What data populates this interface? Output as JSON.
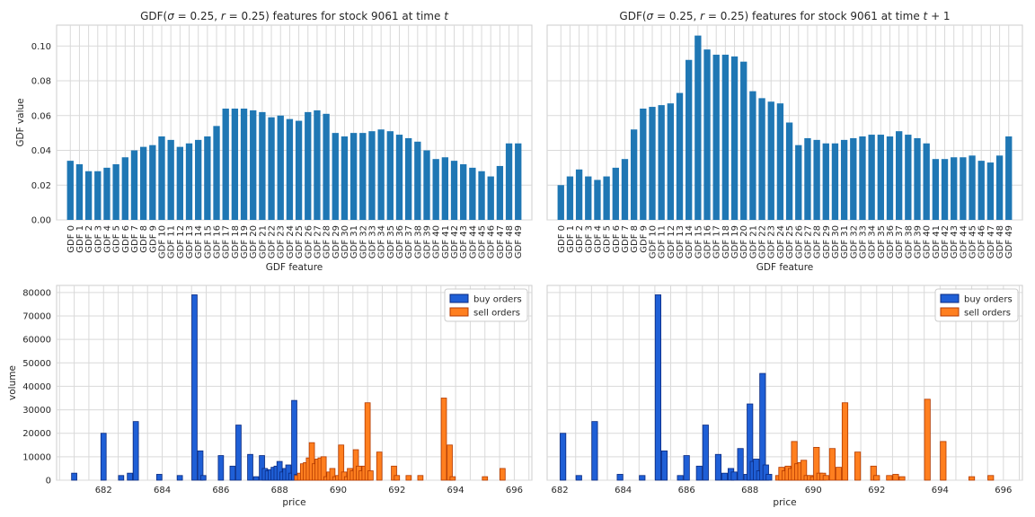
{
  "colors": {
    "gdf_bar": "#1f77b4",
    "buy_fill": "#1f5fd6",
    "buy_edge": "#0a2a80",
    "sell_fill": "#ff7f1f",
    "sell_edge": "#b33a00"
  },
  "chart_data": [
    {
      "id": "gdf_t",
      "type": "bar",
      "title_parts": [
        "GDF(",
        "σ",
        " = 0.25, ",
        "r",
        " = 0.25) features for stock 9061 at time ",
        "t",
        ""
      ],
      "xlabel": "GDF feature",
      "ylabel": "GDF value",
      "ylim": [
        0,
        0.112
      ],
      "yticks": [
        0.0,
        0.02,
        0.04,
        0.06,
        0.08,
        0.1
      ],
      "ytick_labels": [
        "0.00",
        "0.02",
        "0.04",
        "0.06",
        "0.08",
        "0.10"
      ],
      "categories": [
        "GDF 0",
        "GDF 1",
        "GDF 2",
        "GDF 3",
        "GDF 4",
        "GDF 5",
        "GDF 6",
        "GDF 7",
        "GDF 8",
        "GDF 9",
        "GDF 10",
        "GDF 11",
        "GDF 12",
        "GDF 13",
        "GDF 14",
        "GDF 15",
        "GDF 16",
        "GDF 17",
        "GDF 18",
        "GDF 19",
        "GDF 20",
        "GDF 21",
        "GDF 22",
        "GDF 23",
        "GDF 24",
        "GDF 25",
        "GDF 26",
        "GDF 27",
        "GDF 28",
        "GDF 29",
        "GDF 30",
        "GDF 31",
        "GDF 32",
        "GDF 33",
        "GDF 34",
        "GDF 35",
        "GDF 36",
        "GDF 37",
        "GDF 38",
        "GDF 39",
        "GDF 40",
        "GDF 41",
        "GDF 42",
        "GDF 43",
        "GDF 44",
        "GDF 45",
        "GDF 46",
        "GDF 47",
        "GDF 48",
        "GDF 49"
      ],
      "values": [
        0.034,
        0.032,
        0.028,
        0.028,
        0.03,
        0.032,
        0.036,
        0.04,
        0.042,
        0.043,
        0.048,
        0.046,
        0.042,
        0.044,
        0.046,
        0.048,
        0.054,
        0.064,
        0.064,
        0.064,
        0.063,
        0.062,
        0.059,
        0.06,
        0.058,
        0.057,
        0.062,
        0.063,
        0.061,
        0.05,
        0.048,
        0.05,
        0.05,
        0.051,
        0.052,
        0.051,
        0.049,
        0.047,
        0.045,
        0.04,
        0.035,
        0.036,
        0.034,
        0.032,
        0.03,
        0.028,
        0.025,
        0.031,
        0.044,
        0.044
      ]
    },
    {
      "id": "gdf_t1",
      "type": "bar",
      "title_parts": [
        "GDF(",
        "σ",
        " = 0.25, ",
        "r",
        " = 0.25) features for stock 9061 at time ",
        "t",
        " + 1"
      ],
      "xlabel": "GDF feature",
      "ylabel": "",
      "ylim": [
        0,
        0.112
      ],
      "yticks": [
        0.0,
        0.02,
        0.04,
        0.06,
        0.08,
        0.1
      ],
      "ytick_labels": [],
      "categories": [
        "GDF 0",
        "GDF 1",
        "GDF 2",
        "GDF 3",
        "GDF 4",
        "GDF 5",
        "GDF 6",
        "GDF 7",
        "GDF 8",
        "GDF 9",
        "GDF 10",
        "GDF 11",
        "GDF 12",
        "GDF 13",
        "GDF 14",
        "GDF 15",
        "GDF 16",
        "GDF 17",
        "GDF 18",
        "GDF 19",
        "GDF 20",
        "GDF 21",
        "GDF 22",
        "GDF 23",
        "GDF 24",
        "GDF 25",
        "GDF 26",
        "GDF 27",
        "GDF 28",
        "GDF 29",
        "GDF 30",
        "GDF 31",
        "GDF 32",
        "GDF 33",
        "GDF 34",
        "GDF 35",
        "GDF 36",
        "GDF 37",
        "GDF 38",
        "GDF 39",
        "GDF 40",
        "GDF 41",
        "GDF 42",
        "GDF 43",
        "GDF 44",
        "GDF 45",
        "GDF 46",
        "GDF 47",
        "GDF 48",
        "GDF 49"
      ],
      "values": [
        0.02,
        0.025,
        0.029,
        0.025,
        0.023,
        0.025,
        0.03,
        0.035,
        0.052,
        0.064,
        0.065,
        0.066,
        0.067,
        0.073,
        0.092,
        0.106,
        0.098,
        0.095,
        0.095,
        0.094,
        0.091,
        0.074,
        0.07,
        0.068,
        0.067,
        0.056,
        0.043,
        0.047,
        0.046,
        0.044,
        0.044,
        0.046,
        0.047,
        0.048,
        0.049,
        0.049,
        0.048,
        0.051,
        0.049,
        0.047,
        0.044,
        0.035,
        0.035,
        0.036,
        0.036,
        0.037,
        0.034,
        0.033,
        0.037,
        0.048
      ]
    },
    {
      "id": "orders_t",
      "type": "bar",
      "xlabel": "price",
      "ylabel": "volume",
      "xlim": [
        680.4,
        696.6
      ],
      "ylim": [
        0,
        83000
      ],
      "xticks": [
        682,
        684,
        686,
        688,
        690,
        692,
        694,
        696
      ],
      "yticks": [
        0,
        10000,
        20000,
        30000,
        40000,
        50000,
        60000,
        70000,
        80000
      ],
      "ytick_labels": [
        "0",
        "10000",
        "20000",
        "30000",
        "40000",
        "50000",
        "60000",
        "70000",
        "80000"
      ],
      "bar_width": 0.18,
      "legend": [
        "buy orders",
        "sell orders"
      ],
      "legend_loc": "upper right",
      "series": [
        {
          "name": "buy orders",
          "x": [
            681.0,
            682.0,
            682.6,
            682.9,
            683.1,
            683.9,
            684.6,
            685.1,
            685.3,
            685.4,
            686.0,
            686.4,
            686.6,
            687.0,
            687.2,
            687.4,
            687.5,
            687.6,
            687.7,
            687.8,
            687.9,
            688.0,
            688.1,
            688.2,
            688.3,
            688.4,
            688.5,
            688.6
          ],
          "values": [
            3000,
            20000,
            2000,
            3000,
            25000,
            2500,
            2000,
            79000,
            12500,
            2000,
            10500,
            6000,
            23500,
            11000,
            1500,
            10500,
            5000,
            4000,
            4500,
            5500,
            6000,
            8000,
            3500,
            5000,
            6500,
            3000,
            34000,
            2500
          ]
        },
        {
          "name": "sell orders",
          "x": [
            688.6,
            688.7,
            688.8,
            688.9,
            689.0,
            689.1,
            689.2,
            689.3,
            689.4,
            689.5,
            689.6,
            689.7,
            689.8,
            689.9,
            690.0,
            690.1,
            690.2,
            690.3,
            690.4,
            690.5,
            690.6,
            690.7,
            690.8,
            690.9,
            691.0,
            691.1,
            691.4,
            691.9,
            692.0,
            692.4,
            692.8,
            693.6,
            693.8,
            693.9,
            695.0,
            695.6
          ],
          "values": [
            2000,
            3000,
            7000,
            7500,
            9500,
            16000,
            7000,
            9000,
            9500,
            10000,
            1500,
            3500,
            5000,
            1500,
            2000,
            15000,
            3500,
            1500,
            5000,
            4000,
            13000,
            6000,
            4000,
            6000,
            33000,
            4000,
            12000,
            6000,
            2000,
            2000,
            2000,
            35000,
            15000,
            1500,
            1500,
            5000
          ]
        }
      ]
    },
    {
      "id": "orders_t1",
      "type": "bar",
      "xlabel": "price",
      "ylabel": "",
      "xlim": [
        681.6,
        696.6
      ],
      "ylim": [
        0,
        83000
      ],
      "xticks": [
        682,
        684,
        686,
        688,
        690,
        692,
        694,
        696
      ],
      "yticks": [
        0,
        10000,
        20000,
        30000,
        40000,
        50000,
        60000,
        70000,
        80000
      ],
      "ytick_labels": [],
      "bar_width": 0.18,
      "legend": [
        "buy orders",
        "sell orders"
      ],
      "legend_loc": "upper right",
      "series": [
        {
          "name": "buy orders",
          "x": [
            682.1,
            682.6,
            683.1,
            683.9,
            684.6,
            685.1,
            685.3,
            685.8,
            686.0,
            686.4,
            686.6,
            687.0,
            687.2,
            687.4,
            687.5,
            687.7,
            687.9,
            688.0,
            688.1,
            688.2,
            688.3,
            688.4,
            688.5,
            688.6
          ],
          "values": [
            20000,
            2000,
            25000,
            2500,
            2000,
            79000,
            12500,
            2000,
            10500,
            6000,
            23500,
            11000,
            3000,
            5000,
            3500,
            13500,
            2500,
            32500,
            8000,
            9000,
            4000,
            45500,
            6500,
            2500
          ]
        },
        {
          "name": "sell orders",
          "x": [
            688.9,
            689.0,
            689.1,
            689.2,
            689.3,
            689.4,
            689.5,
            689.6,
            689.7,
            689.8,
            689.9,
            690.0,
            690.1,
            690.2,
            690.3,
            690.4,
            690.6,
            690.8,
            691.0,
            691.4,
            691.9,
            692.0,
            692.4,
            692.6,
            692.8,
            693.6,
            694.1,
            695.0,
            695.6
          ],
          "values": [
            2000,
            5500,
            4000,
            6000,
            5000,
            16500,
            7000,
            7500,
            8500,
            2000,
            2000,
            1500,
            14000,
            3000,
            3000,
            2000,
            13500,
            5500,
            33000,
            12000,
            6000,
            2000,
            2000,
            2500,
            1500,
            34500,
            16500,
            1500,
            2000
          ]
        }
      ]
    }
  ]
}
